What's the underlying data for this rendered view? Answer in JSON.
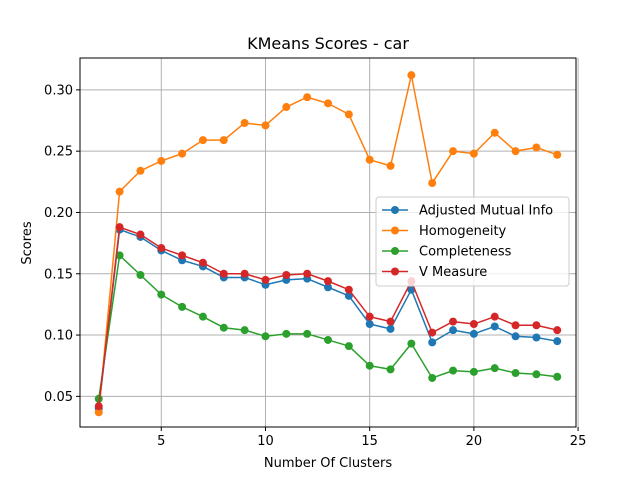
{
  "chart_data": {
    "type": "line",
    "title": "KMeans Scores - car",
    "xlabel": "Number Of Clusters",
    "ylabel": "Scores",
    "xlim": [
      1.1,
      24.9
    ],
    "ylim": [
      0.025,
      0.326
    ],
    "grid": true,
    "legend_position": "center-right",
    "x_ticks": [
      5,
      10,
      15,
      20,
      25
    ],
    "y_ticks": [
      0.05,
      0.1,
      0.15,
      0.2,
      0.25,
      0.3
    ],
    "x_tick_labels": [
      "5",
      "10",
      "15",
      "20",
      "25"
    ],
    "y_tick_labels": [
      "0.05",
      "0.10",
      "0.15",
      "0.20",
      "0.25",
      "0.30"
    ],
    "x": [
      2,
      3,
      4,
      5,
      6,
      7,
      8,
      9,
      10,
      11,
      12,
      13,
      14,
      15,
      16,
      17,
      18,
      19,
      20,
      21,
      22,
      23,
      24
    ],
    "series": [
      {
        "name": "Adjusted Mutual Info",
        "color": "#1f77b4",
        "values": [
          0.04,
          0.186,
          0.18,
          0.169,
          0.161,
          0.156,
          0.147,
          0.147,
          0.141,
          0.145,
          0.146,
          0.139,
          0.132,
          0.109,
          0.105,
          0.137,
          0.094,
          0.104,
          0.101,
          0.107,
          0.099,
          0.098,
          0.095
        ]
      },
      {
        "name": "Homogeneity",
        "color": "#ff7f0e",
        "values": [
          0.037,
          0.217,
          0.234,
          0.242,
          0.248,
          0.259,
          0.259,
          0.273,
          0.271,
          0.286,
          0.294,
          0.289,
          0.28,
          0.243,
          0.238,
          0.312,
          0.224,
          0.25,
          0.248,
          0.265,
          0.25,
          0.253,
          0.247
        ]
      },
      {
        "name": "Completeness",
        "color": "#2ca02c",
        "values": [
          0.048,
          0.165,
          0.149,
          0.133,
          0.123,
          0.115,
          0.106,
          0.104,
          0.099,
          0.101,
          0.101,
          0.096,
          0.091,
          0.075,
          0.072,
          0.093,
          0.065,
          0.071,
          0.07,
          0.073,
          0.069,
          0.068,
          0.066
        ]
      },
      {
        "name": "V Measure",
        "color": "#d62728",
        "values": [
          0.042,
          0.188,
          0.182,
          0.171,
          0.165,
          0.159,
          0.15,
          0.15,
          0.145,
          0.149,
          0.15,
          0.144,
          0.137,
          0.115,
          0.111,
          0.144,
          0.102,
          0.111,
          0.109,
          0.115,
          0.108,
          0.108,
          0.104
        ]
      }
    ]
  }
}
